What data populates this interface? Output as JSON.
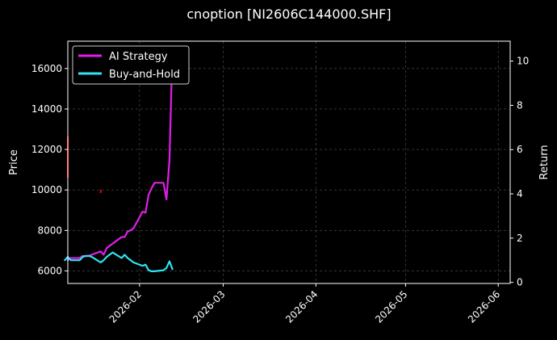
{
  "chart_data": {
    "type": "line",
    "title": "cnoption [NI2606C144000.SHF]",
    "xlabel": "",
    "ylabel": "Price",
    "ylabel_right": "Return",
    "x_range": [
      "2026-01-08",
      "2026-06-05"
    ],
    "ylim": [
      5380,
      17350
    ],
    "ylim_right": [
      -0.05,
      10.9
    ],
    "x_ticks": [
      "2026-02",
      "2026-03",
      "2026-04",
      "2026-05",
      "2026-06"
    ],
    "y_ticks": [
      6000,
      8000,
      10000,
      12000,
      14000,
      16000
    ],
    "y_ticks_right": [
      0,
      2,
      4,
      6,
      8,
      10
    ],
    "grid": true,
    "legend_position": "top-left",
    "colors": {
      "background": "#000000",
      "ai_strategy": "#e11ee8",
      "buy_and_hold": "#2fe3f0",
      "price_marks": "#ff0000",
      "grid": "#555555",
      "axes": "#ffffff"
    },
    "series": [
      {
        "name": "AI Strategy",
        "axis": "right",
        "x": [
          "2026-01-08",
          "2026-01-09",
          "2026-01-12",
          "2026-01-13",
          "2026-01-14",
          "2026-01-15",
          "2026-01-16",
          "2026-01-19",
          "2026-01-20",
          "2026-01-21",
          "2026-01-22",
          "2026-01-23",
          "2026-01-26",
          "2026-01-27",
          "2026-01-28",
          "2026-01-29",
          "2026-01-30",
          "2026-02-02",
          "2026-02-03",
          "2026-02-04",
          "2026-02-05",
          "2026-02-06",
          "2026-02-09",
          "2026-02-10",
          "2026-02-11",
          "2026-02-12"
        ],
        "values": [
          1.0,
          1.1,
          1.1,
          1.2,
          1.18,
          1.2,
          1.25,
          1.4,
          1.25,
          1.55,
          1.65,
          1.75,
          2.05,
          2.05,
          2.3,
          2.35,
          2.45,
          3.2,
          3.15,
          3.95,
          4.25,
          4.5,
          4.5,
          3.75,
          5.5,
          10.5
        ]
      },
      {
        "name": "Buy-and-Hold",
        "axis": "right",
        "x": [
          "2026-01-07",
          "2026-01-08",
          "2026-01-09",
          "2026-01-12",
          "2026-01-13",
          "2026-01-14",
          "2026-01-15",
          "2026-01-16",
          "2026-01-19",
          "2026-01-20",
          "2026-01-21",
          "2026-01-22",
          "2026-01-23",
          "2026-01-26",
          "2026-01-27",
          "2026-01-28",
          "2026-01-29",
          "2026-01-30",
          "2026-02-02",
          "2026-02-03",
          "2026-02-04",
          "2026-02-05",
          "2026-02-06",
          "2026-02-09",
          "2026-02-10",
          "2026-02-11",
          "2026-02-12"
        ],
        "values": [
          1.0,
          1.15,
          1.0,
          1.0,
          1.15,
          1.2,
          1.2,
          1.15,
          0.9,
          1.0,
          1.15,
          1.25,
          1.35,
          1.1,
          1.25,
          1.1,
          1.0,
          0.9,
          0.75,
          0.8,
          0.55,
          0.5,
          0.5,
          0.55,
          0.65,
          0.95,
          0.6
        ]
      },
      {
        "name": "",
        "axis": "left",
        "x": [
          "2026-01-08",
          "2026-01-08",
          "2026-01-19",
          "2026-01-19"
        ],
        "values": [
          10600,
          12650,
          9850,
          10000
        ]
      }
    ]
  },
  "legend": {
    "items": [
      "AI Strategy",
      "Buy-and-Hold"
    ]
  }
}
